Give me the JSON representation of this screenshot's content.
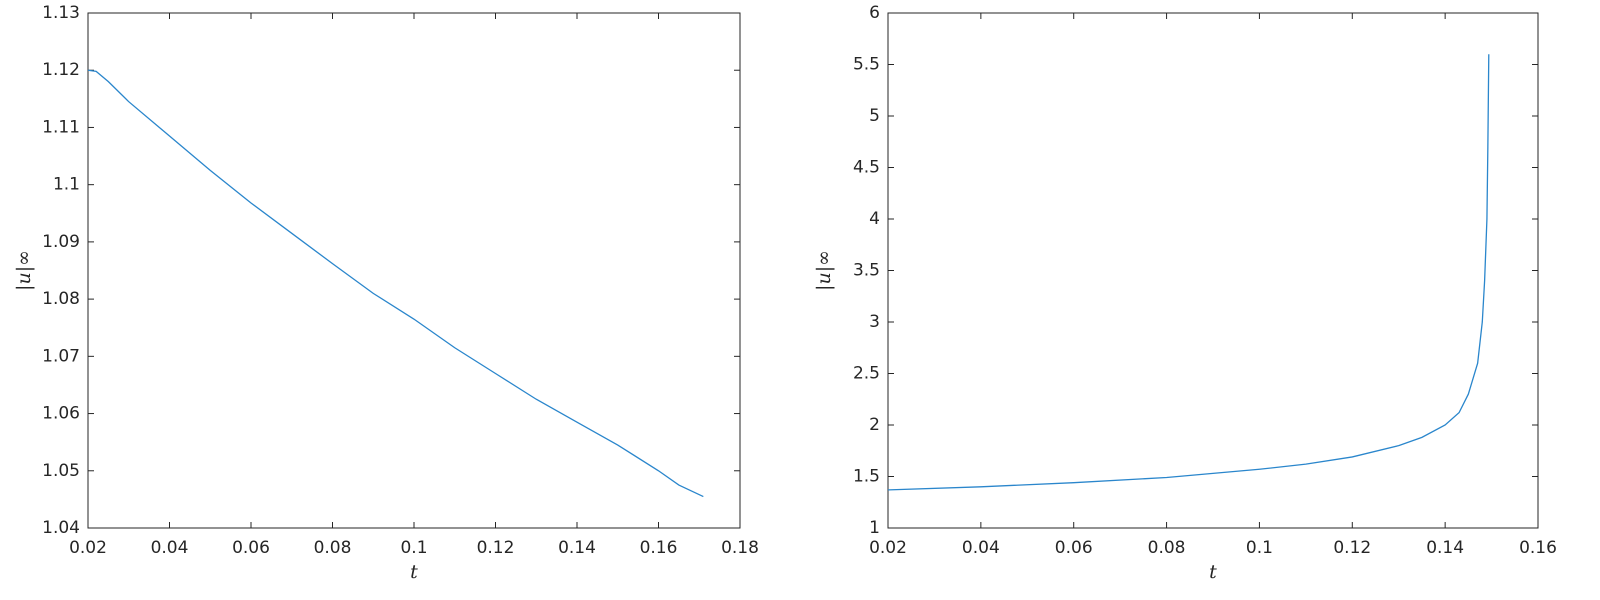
{
  "chart_data": [
    {
      "type": "line",
      "xlabel": "t",
      "ylabel": "|u|∞",
      "x": [
        0.02,
        0.022,
        0.025,
        0.03,
        0.04,
        0.05,
        0.06,
        0.07,
        0.08,
        0.09,
        0.1,
        0.11,
        0.12,
        0.13,
        0.14,
        0.15,
        0.16,
        0.165,
        0.171
      ],
      "series": [
        {
          "color": "#2a86cc",
          "values": [
            1.12,
            1.1198,
            1.118,
            1.1145,
            1.1085,
            1.1025,
            1.0968,
            1.0915,
            1.0862,
            1.081,
            1.0765,
            1.0715,
            1.067,
            1.0625,
            1.0585,
            1.0545,
            1.05,
            1.0475,
            1.0455
          ]
        }
      ],
      "xlim": [
        0.02,
        0.18
      ],
      "xticks": [
        0.02,
        0.04,
        0.06,
        0.08,
        0.1,
        0.12,
        0.14,
        0.16,
        0.18
      ],
      "ylim": [
        1.04,
        1.13
      ],
      "yticks": [
        1.04,
        1.05,
        1.06,
        1.07,
        1.08,
        1.09,
        1.1,
        1.11,
        1.12,
        1.13
      ]
    },
    {
      "type": "line",
      "xlabel": "t",
      "ylabel": "|u|∞",
      "x": [
        0.02,
        0.04,
        0.06,
        0.08,
        0.1,
        0.11,
        0.12,
        0.13,
        0.135,
        0.14,
        0.143,
        0.145,
        0.147,
        0.148,
        0.1485,
        0.149,
        0.1492,
        0.1494
      ],
      "series": [
        {
          "color": "#2a86cc",
          "values": [
            1.37,
            1.4,
            1.44,
            1.49,
            1.57,
            1.62,
            1.69,
            1.8,
            1.88,
            2.0,
            2.12,
            2.3,
            2.6,
            3.0,
            3.4,
            4.0,
            4.7,
            5.6
          ]
        }
      ],
      "xlim": [
        0.02,
        0.16
      ],
      "xticks": [
        0.02,
        0.04,
        0.06,
        0.08,
        0.1,
        0.12,
        0.14,
        0.16
      ],
      "ylim": [
        1,
        6
      ],
      "yticks": [
        1,
        1.5,
        2,
        2.5,
        3,
        3.5,
        4,
        4.5,
        5,
        5.5,
        6
      ]
    }
  ]
}
